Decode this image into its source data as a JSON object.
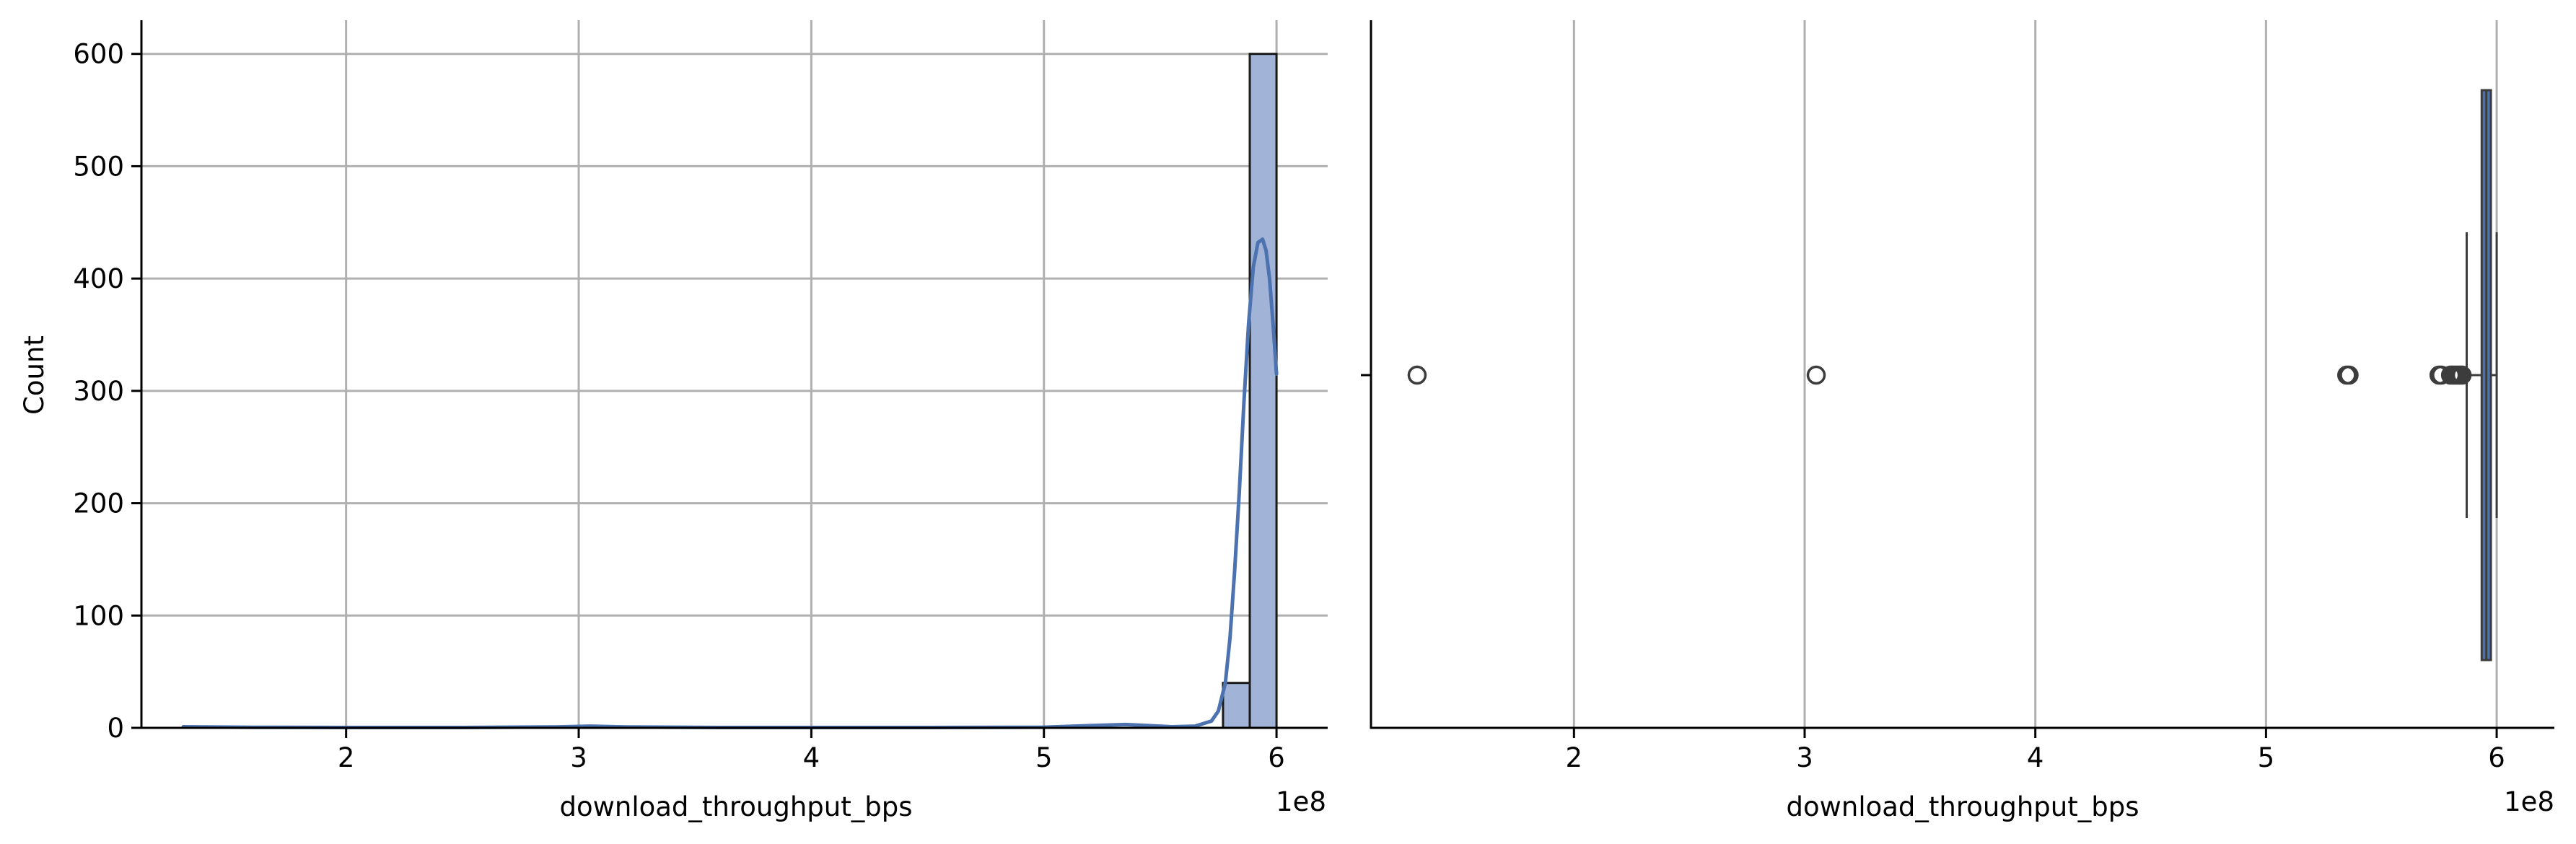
{
  "colors": {
    "bar_fill": "#a1b3d6",
    "bar_edge": "#1a1a1a",
    "kde_line": "#4c72b0",
    "box_fill": "#4c72b0",
    "box_edge": "#3c3c3c",
    "grid": "#b0b0b0",
    "axis": "#000000"
  },
  "chart_data": [
    {
      "type": "bar",
      "subtype": "histogram-with-kde",
      "title": "",
      "xlabel": "download_throughput_bps",
      "ylabel": "Count",
      "x_scale_label": "1e8",
      "xlim": [
        1.12,
        6.22
      ],
      "ylim": [
        0,
        630
      ],
      "x_ticks": [
        2,
        3,
        4,
        5,
        6
      ],
      "y_ticks": [
        0,
        100,
        200,
        300,
        400,
        500,
        600
      ],
      "grid": true,
      "bins": [
        {
          "start": 5.77,
          "end": 5.885,
          "count": 40
        },
        {
          "start": 5.885,
          "end": 6.0,
          "count": 600
        }
      ],
      "kde": {
        "x": [
          1.3,
          1.6,
          2.0,
          2.5,
          2.9,
          3.05,
          3.2,
          3.6,
          4.0,
          4.5,
          5.0,
          5.2,
          5.35,
          5.45,
          5.55,
          5.65,
          5.72,
          5.75,
          5.78,
          5.8,
          5.82,
          5.84,
          5.86,
          5.88,
          5.9,
          5.92,
          5.94,
          5.955,
          5.97,
          5.985,
          6.0
        ],
        "y": [
          1,
          0.5,
          0.3,
          0.3,
          0.8,
          1.5,
          0.8,
          0.3,
          0.3,
          0.3,
          0.6,
          2,
          3,
          2,
          1,
          1.5,
          6,
          15,
          40,
          80,
          140,
          210,
          290,
          360,
          410,
          432,
          435,
          425,
          400,
          360,
          315
        ]
      }
    },
    {
      "type": "box",
      "title": "",
      "xlabel": "download_throughput_bps",
      "ylabel": "",
      "x_scale_label": "1e8",
      "xlim": [
        1.12,
        6.25
      ],
      "x_ticks": [
        2,
        3,
        4,
        5,
        6
      ],
      "grid": true,
      "whisker_low": 5.87,
      "q1": 5.935,
      "median": 5.955,
      "q3": 5.975,
      "whisker_high": 6.0,
      "outliers": [
        1.32,
        3.05,
        5.35,
        5.36,
        5.75,
        5.76,
        5.8,
        5.81,
        5.82,
        5.83,
        5.84,
        5.85
      ]
    }
  ]
}
